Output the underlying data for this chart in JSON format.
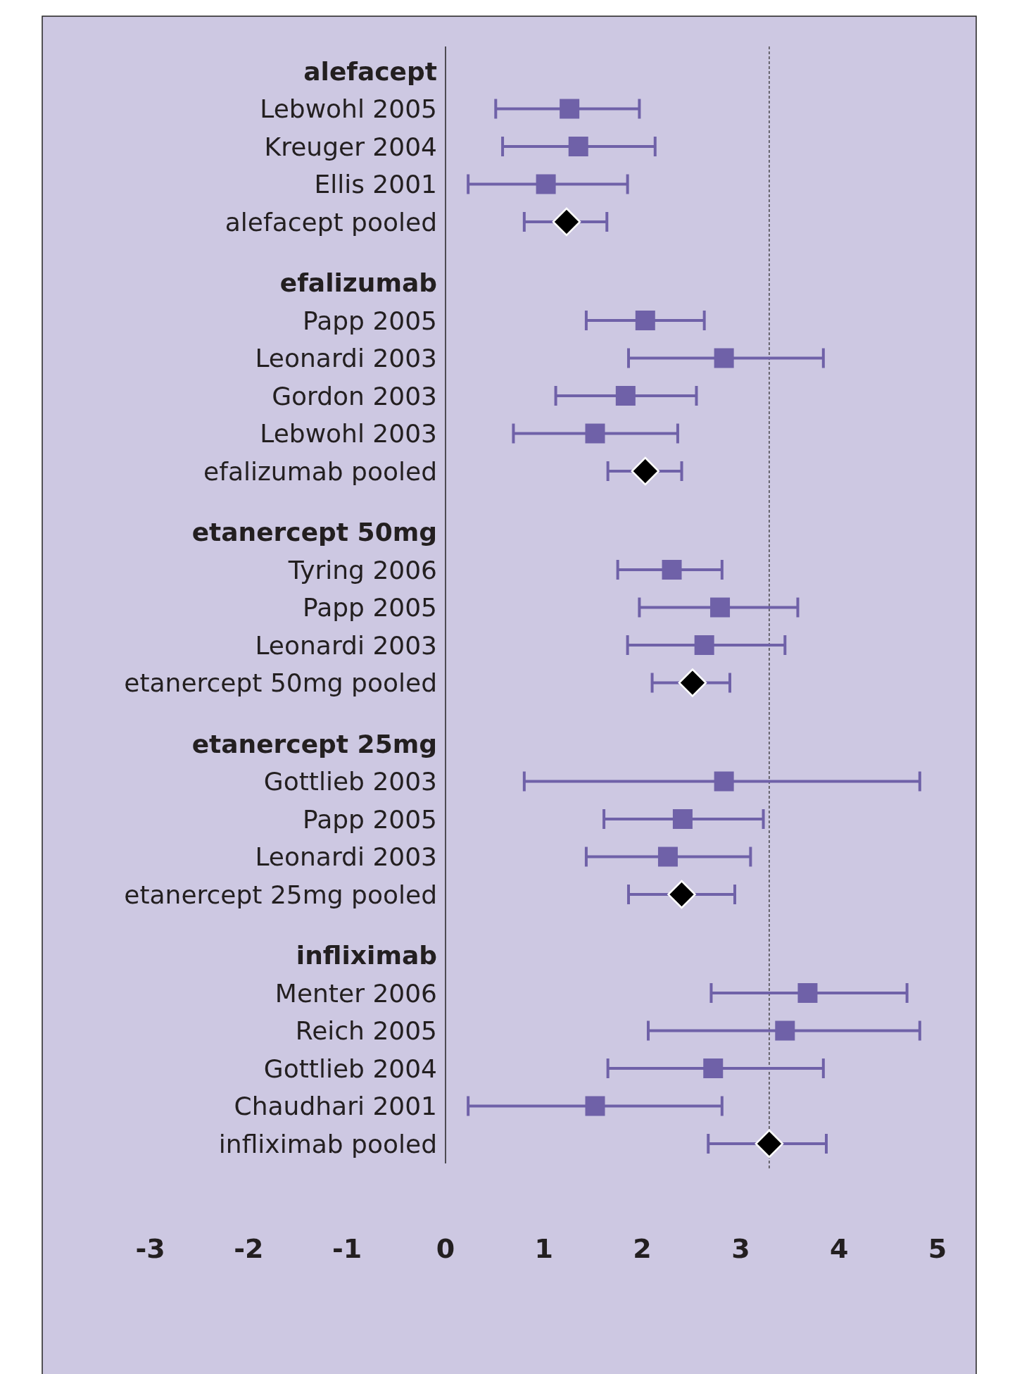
{
  "chart_data": {
    "type": "scatter",
    "orientation": "horizontal",
    "categories": [
      "alefacept",
      "Lebwohl 2005",
      "Kreuger 2004",
      "Ellis 2001",
      "alefacept pooled",
      "efalizumab",
      "Papp 2005",
      "Leonardi 2003",
      "Gordon 2003",
      "Lebwohl 2003",
      "efalizumab pooled",
      "etanercept 50mg",
      "Tyring 2006",
      "Papp 2005",
      "Leonardi 2003",
      "etanercept 50mg pooled",
      "etanercept 25mg",
      "Gottlieb 2003",
      "Papp 2005",
      "Leonardi 2003",
      "etanercept 25mg pooled",
      "infliximab",
      "Menter 2006",
      "Reich 2005",
      "Gottlieb 2004",
      "Chaudhari 2001",
      "infliximab pooled"
    ],
    "series": [
      {
        "marker": "square",
        "color": "#6f61a8",
        "values": [
          null,
          1.26,
          1.35,
          1.02,
          null,
          null,
          2.03,
          2.83,
          1.83,
          1.52,
          null,
          null,
          2.3,
          2.79,
          2.63,
          null,
          null,
          2.83,
          2.41,
          2.26,
          null,
          null,
          3.68,
          3.45,
          2.72,
          1.52,
          null
        ],
        "errors": [
          null,
          [
            0.51,
            1.97
          ],
          [
            0.58,
            2.13
          ],
          [
            0.23,
            1.85
          ],
          null,
          null,
          [
            1.43,
            2.63
          ],
          [
            1.86,
            3.84
          ],
          [
            1.12,
            2.55
          ],
          [
            0.69,
            2.36
          ],
          null,
          null,
          [
            1.75,
            2.81
          ],
          [
            1.97,
            3.58
          ],
          [
            1.85,
            3.45
          ],
          null,
          null,
          [
            0.8,
            4.82
          ],
          [
            1.61,
            3.23
          ],
          [
            1.43,
            3.1
          ],
          null,
          null,
          [
            2.7,
            4.69
          ],
          [
            2.06,
            4.82
          ],
          [
            1.65,
            3.84
          ],
          [
            0.23,
            2.81
          ],
          null
        ]
      },
      {
        "marker": "diamond",
        "color": "#000000",
        "values": [
          null,
          null,
          null,
          null,
          1.23,
          null,
          null,
          null,
          null,
          null,
          2.03,
          null,
          null,
          null,
          null,
          2.51,
          null,
          null,
          null,
          null,
          2.4,
          null,
          null,
          null,
          null,
          null,
          3.29
        ],
        "errors": [
          null,
          null,
          null,
          null,
          [
            0.8,
            1.64
          ],
          null,
          null,
          null,
          null,
          null,
          [
            1.65,
            2.4
          ],
          null,
          null,
          null,
          null,
          [
            2.1,
            2.89
          ],
          null,
          null,
          null,
          null,
          [
            1.86,
            2.94
          ],
          null,
          null,
          null,
          null,
          null,
          [
            2.67,
            3.87
          ]
        ]
      }
    ],
    "xlim": [
      -3,
      5
    ],
    "xticks": [
      -3,
      -2,
      -1,
      0,
      1,
      2,
      3,
      4,
      5
    ],
    "ref_lines": [
      {
        "axis": "x",
        "value": 3.29,
        "line_style": "dashed",
        "color": "#333333"
      }
    ],
    "grid": false
  }
}
